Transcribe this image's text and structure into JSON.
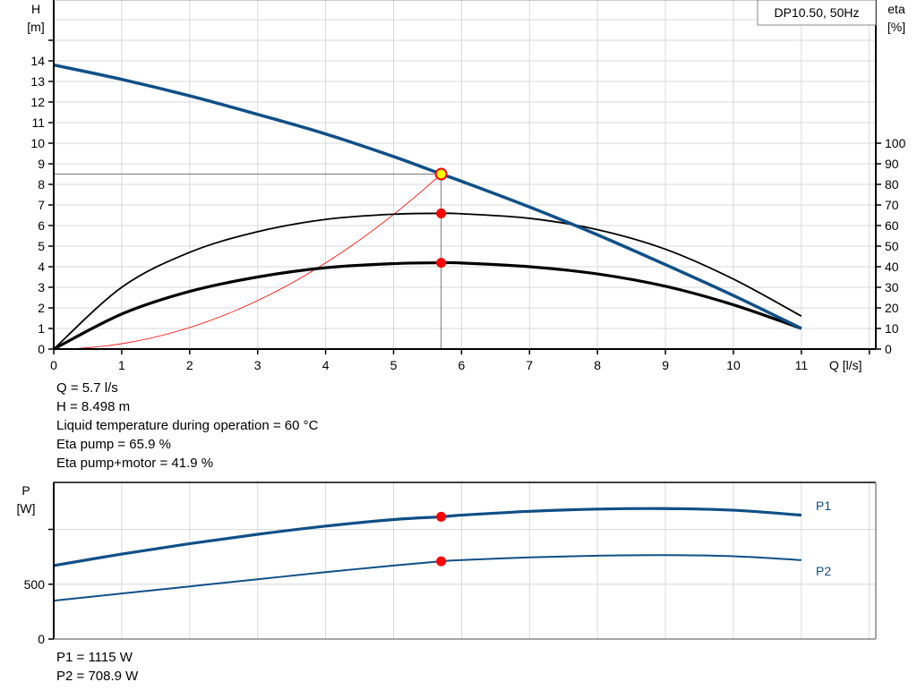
{
  "legend_box": "DP10.50, 50Hz",
  "main_chart": {
    "y_left_label": [
      "H",
      "[m]"
    ],
    "y_right_label": [
      "eta",
      "[%]"
    ],
    "x_label": "Q [l/s]"
  },
  "power_chart": {
    "y_label": [
      "P",
      "[W]"
    ],
    "series_labels": [
      "P1",
      "P2"
    ]
  },
  "operating_info": [
    "Q = 5.7 l/s",
    "H = 8.498 m",
    "Liquid temperature during operation = 60 °C",
    "Eta pump = 65.9 %",
    "Eta pump+motor = 41.9 %"
  ],
  "power_info": [
    "P1 = 1115 W",
    "P2 = 708.9 W"
  ],
  "colors": {
    "head_curve": "#0f4f87",
    "power_curve": "#0f4f87",
    "eta_curves": "#000000",
    "system_curve": "#ff0000",
    "duty_marker": "#ff0000",
    "duty_point_fill": "#ffff00",
    "grid": "#d9d9d9"
  },
  "chart_data": [
    {
      "type": "line",
      "title": "DP10.50, 50Hz",
      "xlabel": "Q [l/s]",
      "ylabel": "H [m]",
      "ylabel_right": "eta [%]",
      "xlim": [
        0,
        12
      ],
      "ylim": [
        0,
        15
      ],
      "ylim_right": [
        0,
        100
      ],
      "x_ticks": [
        0,
        1,
        2,
        3,
        4,
        5,
        6,
        7,
        8,
        9,
        10,
        11
      ],
      "y_ticks": [
        0,
        1,
        2,
        3,
        4,
        5,
        6,
        7,
        8,
        9,
        10,
        11,
        12,
        13,
        14
      ],
      "y_right_ticks": [
        0,
        10,
        20,
        30,
        40,
        50,
        60,
        70,
        80,
        90,
        100
      ],
      "grid": true,
      "x": [
        0,
        1,
        2,
        3,
        4,
        5,
        5.7,
        6,
        7,
        8,
        9,
        10,
        11
      ],
      "series": [
        {
          "name": "H (pump curve)",
          "axis": "left",
          "values": [
            13.8,
            13.1,
            12.3,
            11.4,
            10.45,
            9.35,
            8.5,
            8.15,
            6.9,
            5.55,
            4.1,
            2.6,
            1.0
          ]
        },
        {
          "name": "Eta pump",
          "axis": "right",
          "values": [
            0,
            30,
            47,
            57,
            63,
            65.5,
            65.9,
            65.7,
            63.5,
            58,
            48.5,
            34,
            16
          ]
        },
        {
          "name": "Eta pump+motor",
          "axis": "right",
          "values": [
            0,
            17,
            28,
            35,
            39.5,
            41.5,
            41.9,
            41.8,
            40,
            36.5,
            30.5,
            21.5,
            10
          ]
        },
        {
          "name": "System curve",
          "axis": "left",
          "values": [
            0,
            0.26,
            1.05,
            2.35,
            4.18,
            6.54,
            8.498,
            null,
            null,
            null,
            null,
            null,
            null
          ]
        }
      ],
      "duty_point": {
        "Q": 5.7,
        "H": 8.498,
        "eta_pump": 65.9,
        "eta_pump_motor": 41.9
      }
    },
    {
      "type": "line",
      "title": "",
      "xlabel": "Q [l/s]",
      "ylabel": "P [W]",
      "xlim": [
        0,
        12
      ],
      "ylim": [
        0,
        1420
      ],
      "y_ticks": [
        0,
        500,
        1000
      ],
      "y_tick_labels": [
        "0",
        "500",
        ""
      ],
      "grid": true,
      "x": [
        0,
        1,
        2,
        3,
        4,
        5,
        5.7,
        6,
        7,
        8,
        9,
        10,
        11
      ],
      "series": [
        {
          "name": "P1",
          "values": [
            670,
            775,
            870,
            955,
            1030,
            1090,
            1115,
            1130,
            1165,
            1185,
            1190,
            1175,
            1130
          ]
        },
        {
          "name": "P2",
          "values": [
            350,
            415,
            480,
            545,
            610,
            670,
            708.9,
            720,
            745,
            760,
            765,
            755,
            720
          ]
        }
      ],
      "duty_point": {
        "Q": 5.7,
        "P1": 1115,
        "P2": 708.9
      }
    }
  ]
}
